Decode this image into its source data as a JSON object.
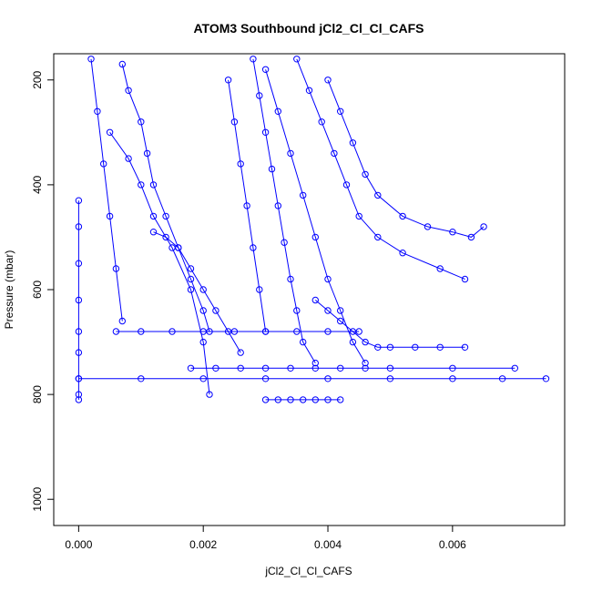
{
  "chart_data": {
    "type": "scatter",
    "title": "ATOM3 Southbound jCl2_Cl_Cl_CAFS",
    "xlabel": "jCl2_Cl_Cl_CAFS",
    "ylabel": "Pressure (mbar)",
    "xlim": [
      -0.0004,
      0.0078
    ],
    "ylim": [
      1050,
      150
    ],
    "y_reversed": true,
    "grid": false,
    "legend": "none",
    "marker": "open-circle",
    "connected_lines": true,
    "color": "#0000ff",
    "x_ticks": [
      0.0,
      0.002,
      0.004,
      0.006
    ],
    "x_tick_labels": [
      "0.000",
      "0.002",
      "0.004",
      "0.006"
    ],
    "y_ticks": [
      200,
      400,
      600,
      800,
      1000
    ],
    "y_tick_labels": [
      "200",
      "400",
      "600",
      "800",
      "1000"
    ],
    "series": [
      {
        "x": [
          0.0,
          0.0,
          0.0,
          0.0,
          0.0,
          0.0,
          0.0,
          0.0,
          0.0
        ],
        "y": [
          430,
          480,
          550,
          620,
          680,
          720,
          770,
          800,
          810
        ]
      },
      {
        "x": [
          0.0,
          0.001,
          0.002,
          0.003,
          0.004,
          0.005,
          0.006,
          0.0068,
          0.0075
        ],
        "y": [
          770,
          770,
          770,
          770,
          770,
          770,
          770,
          770,
          770
        ]
      },
      {
        "x": [
          0.0007,
          0.0008,
          0.001,
          0.0011,
          0.0012,
          0.0014,
          0.0016,
          0.0018,
          0.002,
          0.0021
        ],
        "y": [
          170,
          220,
          280,
          340,
          400,
          460,
          520,
          580,
          640,
          680
        ]
      },
      {
        "x": [
          0.0006,
          0.001,
          0.0015,
          0.002,
          0.0025,
          0.003,
          0.0035,
          0.004,
          0.0045
        ],
        "y": [
          680,
          680,
          680,
          680,
          680,
          680,
          680,
          680,
          680
        ]
      },
      {
        "x": [
          0.0005,
          0.0008,
          0.001,
          0.0012,
          0.0015,
          0.0018,
          0.002,
          0.0021
        ],
        "y": [
          300,
          350,
          400,
          460,
          520,
          600,
          700,
          800
        ]
      },
      {
        "x": [
          0.0018,
          0.0022,
          0.0026,
          0.003,
          0.0034,
          0.0038,
          0.0042,
          0.0046,
          0.005,
          0.006,
          0.007
        ],
        "y": [
          750,
          750,
          750,
          750,
          750,
          750,
          750,
          750,
          750,
          750,
          750
        ]
      },
      {
        "x": [
          0.0028,
          0.0029,
          0.003,
          0.0031,
          0.0032,
          0.0033,
          0.0034,
          0.0035,
          0.0036,
          0.0038
        ],
        "y": [
          160,
          230,
          300,
          370,
          440,
          510,
          580,
          640,
          700,
          740
        ]
      },
      {
        "x": [
          0.003,
          0.0032,
          0.0034,
          0.0036,
          0.0038,
          0.004,
          0.0042,
          0.0044,
          0.0046
        ],
        "y": [
          180,
          260,
          340,
          420,
          500,
          580,
          640,
          700,
          740
        ]
      },
      {
        "x": [
          0.0035,
          0.0037,
          0.0039,
          0.0041,
          0.0043,
          0.0045,
          0.0048,
          0.0052,
          0.0058,
          0.0062
        ],
        "y": [
          160,
          220,
          280,
          340,
          400,
          460,
          500,
          530,
          560,
          580
        ]
      },
      {
        "x": [
          0.004,
          0.0042,
          0.0044,
          0.0046,
          0.0048,
          0.0052,
          0.0056,
          0.006,
          0.0063,
          0.0065
        ],
        "y": [
          200,
          260,
          320,
          380,
          420,
          460,
          480,
          490,
          500,
          480
        ]
      },
      {
        "x": [
          0.0038,
          0.004,
          0.0042,
          0.0044,
          0.0046,
          0.0048,
          0.005,
          0.0054,
          0.0058,
          0.0062
        ],
        "y": [
          620,
          640,
          660,
          680,
          700,
          710,
          710,
          710,
          710,
          710
        ]
      },
      {
        "x": [
          0.003,
          0.0032,
          0.0034,
          0.0036,
          0.0038,
          0.004,
          0.0042
        ],
        "y": [
          810,
          810,
          810,
          810,
          810,
          810,
          810
        ]
      },
      {
        "x": [
          0.0002,
          0.0003,
          0.0004,
          0.0005,
          0.0006,
          0.0007
        ],
        "y": [
          160,
          260,
          360,
          460,
          560,
          660
        ]
      },
      {
        "x": [
          0.0012,
          0.0014,
          0.0016,
          0.0018,
          0.002,
          0.0022,
          0.0024,
          0.0026
        ],
        "y": [
          490,
          500,
          520,
          560,
          600,
          640,
          680,
          720
        ]
      },
      {
        "x": [
          0.0024,
          0.0025,
          0.0026,
          0.0027,
          0.0028,
          0.0029,
          0.003
        ],
        "y": [
          200,
          280,
          360,
          440,
          520,
          600,
          680
        ]
      }
    ]
  }
}
